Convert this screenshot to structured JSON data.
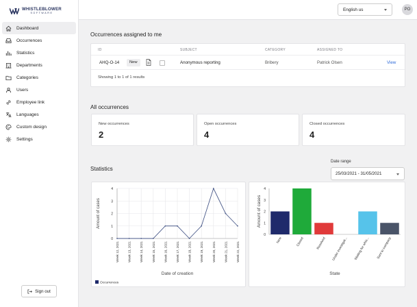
{
  "app": {
    "logo_line1": "WHISTLEBLOWER",
    "logo_line2": "SOFTWARE",
    "brand_color": "#2a3560"
  },
  "sidebar": {
    "items": [
      {
        "label": "Dashboard",
        "icon": "home-icon",
        "active": true
      },
      {
        "label": "Occurrences",
        "icon": "inbox-icon"
      },
      {
        "label": "Statistics",
        "icon": "bar-chart-icon"
      },
      {
        "label": "Departments",
        "icon": "building-icon"
      },
      {
        "label": "Categories",
        "icon": "folder-icon"
      },
      {
        "label": "Users",
        "icon": "users-icon"
      },
      {
        "label": "Employee link",
        "icon": "link-icon"
      },
      {
        "label": "Languages",
        "icon": "translate-icon"
      },
      {
        "label": "Custom design",
        "icon": "palette-icon"
      },
      {
        "label": "Settings",
        "icon": "gear-icon"
      }
    ],
    "signout_label": "Sign out"
  },
  "topbar": {
    "language_value": "English us",
    "avatar_initials": "PO"
  },
  "assigned": {
    "title": "Occurrences assigned to me",
    "columns": [
      "ID",
      "SUBJECT",
      "CATEGORY",
      "ASSIGNED TO"
    ],
    "rows": [
      {
        "id": "AHQ-O-14",
        "badge": "New",
        "subject": "Anonymous reporting",
        "category": "Bribery",
        "assigned_to": "Patrick Olsen",
        "action": "View"
      }
    ],
    "footer": "Showing 1 to 1 of 1 results"
  },
  "all": {
    "title": "All occurrences",
    "cards": [
      {
        "label": "New occurrences",
        "value": "2"
      },
      {
        "label": "Open occurrences",
        "value": "4"
      },
      {
        "label": "Closed occurrences",
        "value": "4"
      }
    ]
  },
  "statistics": {
    "title": "Statistics",
    "date_range_label": "Date range",
    "date_range_value": "25/03/2021 - 31/05/2021"
  },
  "chart_data": [
    {
      "type": "line",
      "title": "",
      "xlabel": "Date of creation",
      "ylabel": "Amount of cases",
      "ylim": [
        0,
        4
      ],
      "yticks": [
        0,
        1,
        2,
        3,
        4
      ],
      "x": [
        "Week 12, 2021",
        "Week 13, 2021",
        "Week 14, 2021",
        "Week 15, 2021",
        "Week 16, 2021",
        "Week 17, 2021",
        "Week 18, 2021",
        "Week 19, 2021",
        "Week 20, 2021",
        "Week 21, 2021",
        "Week 22, 2021"
      ],
      "series": [
        {
          "name": "Occurrences",
          "values": [
            0,
            0,
            0,
            0,
            1,
            1,
            0,
            1,
            4,
            2,
            1
          ],
          "color": "#4a5a8a"
        }
      ],
      "grid": true,
      "legend": "bottom-left",
      "legend_swatch": "#1f2a6b"
    },
    {
      "type": "bar",
      "title": "",
      "xlabel": "State",
      "ylabel": "Amount of cases",
      "ylim": [
        0,
        4
      ],
      "yticks": [
        0,
        1,
        2,
        3,
        4
      ],
      "categories": [
        "New",
        "Closed",
        "Resolved",
        "Under investigat...",
        "Waiting for whis...",
        "Sent to company"
      ],
      "values": [
        2,
        4,
        1,
        0,
        2,
        1
      ],
      "colors": [
        "#1f2a6b",
        "#1faa3a",
        "#e03a3a",
        "#cccccc",
        "#56c3ea",
        "#4a5468"
      ],
      "grid": false
    }
  ]
}
